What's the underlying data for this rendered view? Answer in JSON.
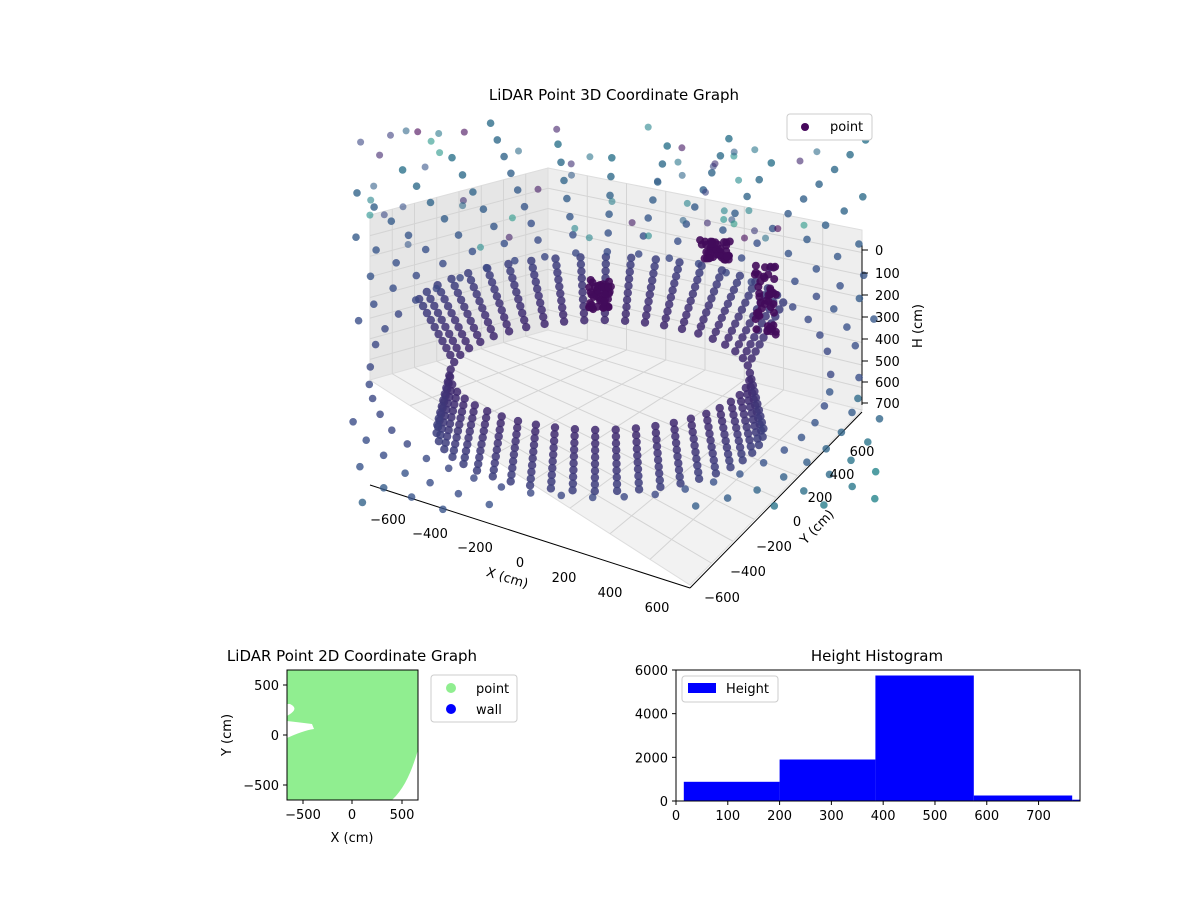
{
  "chart_data": [
    {
      "type": "scatter",
      "title": "LiDAR Point 3D Coordinate Graph",
      "xlabel": "X (cm)",
      "ylabel": "Y (cm)",
      "zlabel": "H (cm)",
      "xlim": [
        -650,
        650
      ],
      "ylim": [
        -650,
        650
      ],
      "zlim": [
        780,
        0
      ],
      "x_ticks": [
        "−600",
        "−400",
        "−200",
        "0",
        "200",
        "400",
        "600"
      ],
      "y_ticks": [
        "−600",
        "−400",
        "−200",
        "0",
        "200",
        "400",
        "600"
      ],
      "z_ticks": [
        "0",
        "100",
        "200",
        "300",
        "400",
        "500",
        "600",
        "700"
      ],
      "legend": [
        {
          "label": "point",
          "color": "#46085c"
        }
      ],
      "legend_position": "top-right",
      "colormap": "viridis",
      "grid": true
    },
    {
      "type": "scatter",
      "title": "LiDAR Point 2D Coordinate Graph",
      "xlabel": "X (cm)",
      "ylabel": "Y (cm)",
      "xlim": [
        -650,
        650
      ],
      "ylim": [
        -650,
        650
      ],
      "x_ticks": [
        "−500",
        "0",
        "500"
      ],
      "y_ticks": [
        "500",
        "0",
        "−500"
      ],
      "series": [
        {
          "name": "point",
          "color": "#90ee90"
        },
        {
          "name": "wall",
          "color": "#0000ff"
        }
      ],
      "legend_position": "outside-right"
    },
    {
      "type": "bar",
      "title": "Height Histogram",
      "xlim": [
        0,
        780
      ],
      "ylim": [
        0,
        6000
      ],
      "x_ticks": [
        "0",
        "100",
        "200",
        "300",
        "400",
        "500",
        "600",
        "700"
      ],
      "y_ticks": [
        "0",
        "2000",
        "4000",
        "6000"
      ],
      "series": [
        {
          "name": "Height",
          "color": "#0000ff"
        }
      ],
      "bins": [
        {
          "from": 15,
          "to": 200,
          "count": 880
        },
        {
          "from": 200,
          "to": 385,
          "count": 1900
        },
        {
          "from": 385,
          "to": 575,
          "count": 5750
        },
        {
          "from": 575,
          "to": 765,
          "count": 250
        },
        {
          "from": 765,
          "to": 780,
          "count": 60
        }
      ],
      "legend_position": "upper-left"
    }
  ]
}
